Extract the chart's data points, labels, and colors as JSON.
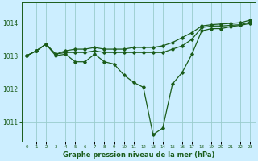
{
  "title": "Graphe pression niveau de la mer (hPa)",
  "background_color": "#cceeff",
  "line_color": "#1a5c1a",
  "grid_color": "#99cccc",
  "x_ticks": [
    0,
    1,
    2,
    3,
    4,
    5,
    6,
    7,
    8,
    9,
    10,
    11,
    12,
    13,
    14,
    15,
    16,
    17,
    18,
    19,
    20,
    21,
    22,
    23
  ],
  "ylim": [
    1010.4,
    1014.6
  ],
  "y_ticks": [
    1011,
    1012,
    1013,
    1014
  ],
  "series": [
    [
      1013.0,
      1013.15,
      1013.35,
      1013.0,
      1013.05,
      1012.82,
      1012.82,
      1013.05,
      1012.82,
      1012.75,
      1012.42,
      1012.2,
      1012.05,
      1010.62,
      1010.82,
      1012.15,
      1012.5,
      1013.05,
      1013.75,
      1013.82,
      1013.82,
      1013.88,
      1013.92,
      1013.98
    ],
    [
      1013.0,
      1013.15,
      1013.35,
      1013.05,
      1013.1,
      1013.1,
      1013.1,
      1013.15,
      1013.1,
      1013.1,
      1013.1,
      1013.1,
      1013.1,
      1013.1,
      1013.1,
      1013.2,
      1013.3,
      1013.5,
      1013.85,
      1013.9,
      1013.9,
      1013.92,
      1013.94,
      1014.02
    ],
    [
      1013.0,
      1013.15,
      1013.35,
      1013.05,
      1013.15,
      1013.2,
      1013.2,
      1013.25,
      1013.2,
      1013.2,
      1013.2,
      1013.25,
      1013.25,
      1013.25,
      1013.3,
      1013.4,
      1013.55,
      1013.7,
      1013.9,
      1013.94,
      1013.96,
      1013.98,
      1014.0,
      1014.08
    ]
  ]
}
